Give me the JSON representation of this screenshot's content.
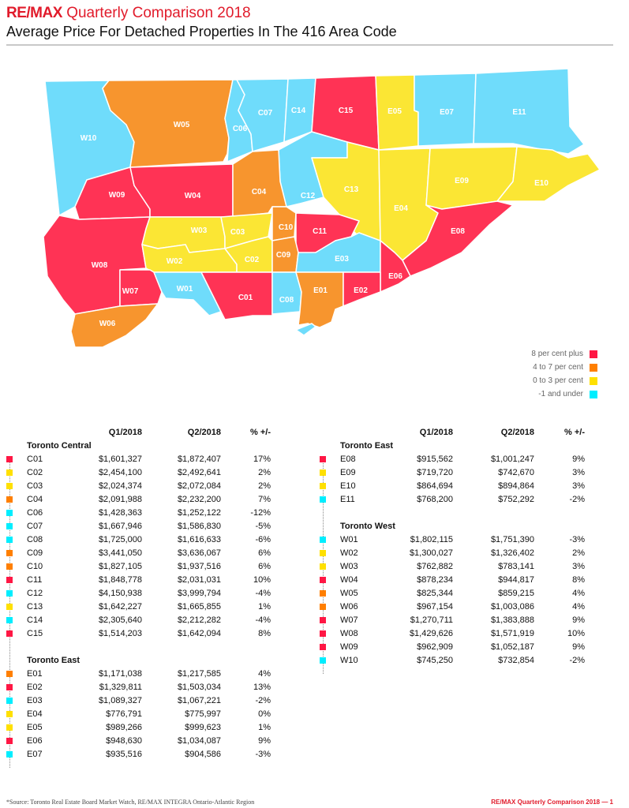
{
  "header": {
    "brand": "RE/MAX",
    "title": "Quarterly Comparison 2018",
    "subtitle": "Average Price For Detached Properties In The 416 Area Code"
  },
  "colors": {
    "red": "#ff3355",
    "orange": "#f7952e",
    "yellow": "#fbe634",
    "blue": "#6fdcfb",
    "brand_red": "#e11b2b"
  },
  "legend": [
    {
      "label": "8 per cent plus",
      "color": "#ff1744"
    },
    {
      "label": "4 to 7 per cent",
      "color": "#ff7f00"
    },
    {
      "label": "0 to 3 per cent",
      "color": "#ffe000"
    },
    {
      "label": "-1 and under",
      "color": "#00eeff"
    }
  ],
  "table_headers": {
    "q1": "Q1/2018",
    "q2": "Q2/2018",
    "pct": "% +/-"
  },
  "left_table": {
    "groups": [
      {
        "name": "Toronto Central",
        "rows": [
          {
            "code": "C01",
            "q1": "$1,601,327",
            "q2": "$1,872,407",
            "pct": "17%",
            "cat": "red"
          },
          {
            "code": "C02",
            "q1": "$2,454,100",
            "q2": "$2,492,641",
            "pct": "2%",
            "cat": "yellow"
          },
          {
            "code": "C03",
            "q1": "$2,024,374",
            "q2": "$2,072,084",
            "pct": "2%",
            "cat": "yellow"
          },
          {
            "code": "C04",
            "q1": "$2,091,988",
            "q2": "$2,232,200",
            "pct": "7%",
            "cat": "orange"
          },
          {
            "code": "C06",
            "q1": "$1,428,363",
            "q2": "$1,252,122",
            "pct": "-12%",
            "cat": "blue"
          },
          {
            "code": "C07",
            "q1": "$1,667,946",
            "q2": "$1,586,830",
            "pct": "-5%",
            "cat": "blue"
          },
          {
            "code": "C08",
            "q1": "$1,725,000",
            "q2": "$1,616,633",
            "pct": "-6%",
            "cat": "blue"
          },
          {
            "code": "C09",
            "q1": "$3,441,050",
            "q2": "$3,636,067",
            "pct": "6%",
            "cat": "orange"
          },
          {
            "code": "C10",
            "q1": "$1,827,105",
            "q2": "$1,937,516",
            "pct": "6%",
            "cat": "orange"
          },
          {
            "code": "C11",
            "q1": "$1,848,778",
            "q2": "$2,031,031",
            "pct": "10%",
            "cat": "red"
          },
          {
            "code": "C12",
            "q1": "$4,150,938",
            "q2": "$3,999,794",
            "pct": "-4%",
            "cat": "blue"
          },
          {
            "code": "C13",
            "q1": "$1,642,227",
            "q2": "$1,665,855",
            "pct": "1%",
            "cat": "yellow"
          },
          {
            "code": "C14",
            "q1": "$2,305,640",
            "q2": "$2,212,282",
            "pct": "-4%",
            "cat": "blue"
          },
          {
            "code": "C15",
            "q1": "$1,514,203",
            "q2": "$1,642,094",
            "pct": "8%",
            "cat": "red"
          }
        ]
      },
      {
        "name": "Toronto East",
        "rows": [
          {
            "code": "E01",
            "q1": "$1,171,038",
            "q2": "$1,217,585",
            "pct": "4%",
            "cat": "orange"
          },
          {
            "code": "E02",
            "q1": "$1,329,811",
            "q2": "$1,503,034",
            "pct": "13%",
            "cat": "red"
          },
          {
            "code": "E03",
            "q1": "$1,089,327",
            "q2": "$1,067,221",
            "pct": "-2%",
            "cat": "blue"
          },
          {
            "code": "E04",
            "q1": "$776,791",
            "q2": "$775,997",
            "pct": "0%",
            "cat": "yellow"
          },
          {
            "code": "E05",
            "q1": "$989,266",
            "q2": "$999,623",
            "pct": "1%",
            "cat": "yellow"
          },
          {
            "code": "E06",
            "q1": "$948,630",
            "q2": "$1,034,087",
            "pct": "9%",
            "cat": "red"
          },
          {
            "code": "E07",
            "q1": "$935,516",
            "q2": "$904,586",
            "pct": "-3%",
            "cat": "blue"
          }
        ]
      }
    ]
  },
  "right_table": {
    "groups": [
      {
        "name": "Toronto East",
        "rows": [
          {
            "code": "E08",
            "q1": "$915,562",
            "q2": "$1,001,247",
            "pct": "9%",
            "cat": "red"
          },
          {
            "code": "E09",
            "q1": "$719,720",
            "q2": "$742,670",
            "pct": "3%",
            "cat": "yellow"
          },
          {
            "code": "E10",
            "q1": "$864,694",
            "q2": "$894,864",
            "pct": "3%",
            "cat": "yellow"
          },
          {
            "code": "E11",
            "q1": "$768,200",
            "q2": "$752,292",
            "pct": "-2%",
            "cat": "blue"
          }
        ]
      },
      {
        "name": "Toronto West",
        "rows": [
          {
            "code": "W01",
            "q1": "$1,802,115",
            "q2": "$1,751,390",
            "pct": "-3%",
            "cat": "blue"
          },
          {
            "code": "W02",
            "q1": "$1,300,027",
            "q2": "$1,326,402",
            "pct": "2%",
            "cat": "yellow"
          },
          {
            "code": "W03",
            "q1": "$762,882",
            "q2": "$783,141",
            "pct": "3%",
            "cat": "yellow"
          },
          {
            "code": "W04",
            "q1": "$878,234",
            "q2": "$944,817",
            "pct": "8%",
            "cat": "red"
          },
          {
            "code": "W05",
            "q1": "$825,344",
            "q2": "$859,215",
            "pct": "4%",
            "cat": "orange"
          },
          {
            "code": "W06",
            "q1": "$967,154",
            "q2": "$1,003,086",
            "pct": "4%",
            "cat": "orange"
          },
          {
            "code": "W07",
            "q1": "$1,270,711",
            "q2": "$1,383,888",
            "pct": "9%",
            "cat": "red"
          },
          {
            "code": "W08",
            "q1": "$1,429,626",
            "q2": "$1,571,919",
            "pct": "10%",
            "cat": "red"
          },
          {
            "code": "W09",
            "q1": "$962,909",
            "q2": "$1,052,187",
            "pct": "9%",
            "cat": "red"
          },
          {
            "code": "W10",
            "q1": "$745,250",
            "q2": "$732,854",
            "pct": "-2%",
            "cat": "blue"
          }
        ]
      }
    ]
  },
  "map_labels": [
    "W10",
    "W05",
    "C06",
    "C07",
    "C14",
    "C15",
    "E05",
    "E07",
    "E11",
    "W09",
    "W04",
    "C04",
    "C12",
    "C13",
    "E09",
    "E10",
    "E04",
    "W03",
    "C03",
    "C10",
    "C11",
    "E08",
    "W08",
    "W02",
    "C02",
    "C09",
    "E03",
    "W07",
    "W01",
    "C01",
    "C08",
    "E01",
    "E02",
    "E06",
    "W06"
  ],
  "footer": {
    "source": "*Source: Toronto Real Estate Board Market Watch, RE/MAX INTEGRA Ontario-Atlantic Region",
    "page": "RE/MAX Quarterly Comparison 2018  — 1"
  }
}
